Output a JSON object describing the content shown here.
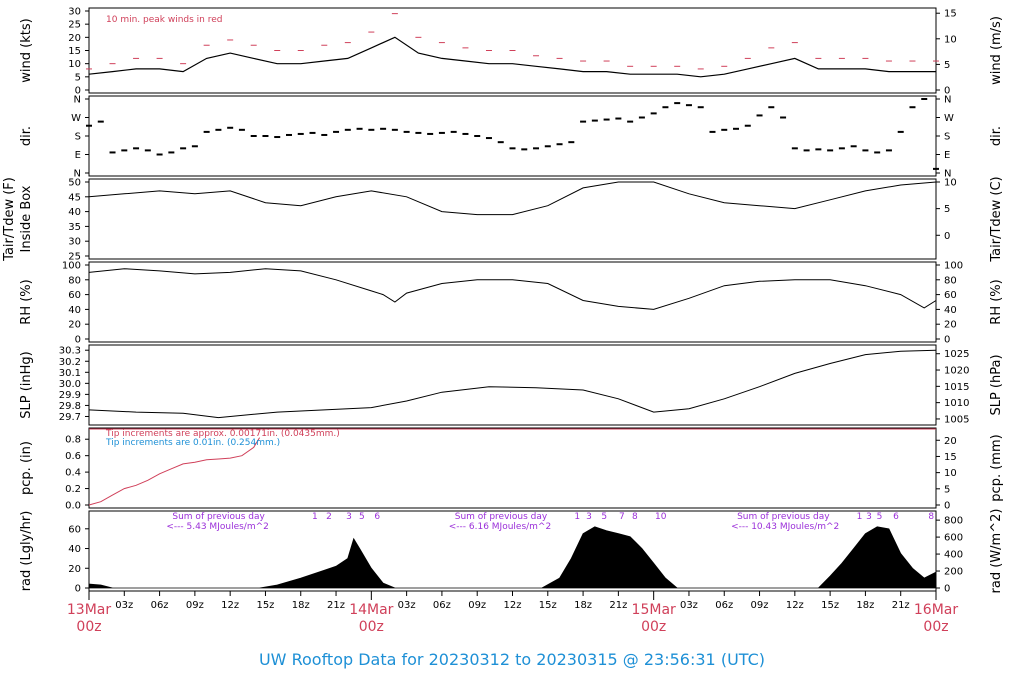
{
  "title": "UW Rooftop Data for 20230312  to  20230315 @ 23:56:31  (UTC)",
  "colors": {
    "peak": "#d0405a",
    "precip_red": "#d0405a",
    "precip_blue": "#1e90d6",
    "purple": "#9b30d9",
    "daylabel": "#d0405a",
    "title": "#1e90d6"
  },
  "x_axis": {
    "day_labels": [
      {
        "hour": 0,
        "top": "13Mar",
        "bottom": "00z"
      },
      {
        "hour": 24,
        "top": "14Mar",
        "bottom": "00z"
      },
      {
        "hour": 48,
        "top": "15Mar",
        "bottom": "00z"
      },
      {
        "hour": 72,
        "top": "16Mar",
        "bottom": "00z"
      }
    ],
    "hour_ticks": [
      {
        "hour": 3,
        "label": "03z"
      },
      {
        "hour": 6,
        "label": "06z"
      },
      {
        "hour": 9,
        "label": "09z"
      },
      {
        "hour": 12,
        "label": "12z"
      },
      {
        "hour": 15,
        "label": "15z"
      },
      {
        "hour": 18,
        "label": "18z"
      },
      {
        "hour": 21,
        "label": "21z"
      },
      {
        "hour": 27,
        "label": "03z"
      },
      {
        "hour": 30,
        "label": "06z"
      },
      {
        "hour": 33,
        "label": "09z"
      },
      {
        "hour": 36,
        "label": "12z"
      },
      {
        "hour": 39,
        "label": "15z"
      },
      {
        "hour": 42,
        "label": "18z"
      },
      {
        "hour": 45,
        "label": "21z"
      },
      {
        "hour": 51,
        "label": "03z"
      },
      {
        "hour": 54,
        "label": "06z"
      },
      {
        "hour": 57,
        "label": "09z"
      },
      {
        "hour": 60,
        "label": "12z"
      },
      {
        "hour": 63,
        "label": "15z"
      },
      {
        "hour": 66,
        "label": "18z"
      },
      {
        "hour": 69,
        "label": "21z"
      }
    ]
  },
  "chart_data": [
    {
      "type": "line",
      "id": "wind",
      "ylabel_left": "wind (kts)",
      "ylabel_right": "wind (m/s)",
      "ylim": [
        0,
        30
      ],
      "left_ticks": [
        0,
        5,
        10,
        15,
        20,
        25,
        30
      ],
      "right_ticks": [
        0,
        5,
        10,
        15
      ],
      "annotation": "10 min. peak winds in red",
      "series": [
        {
          "name": "wind",
          "x": [
            0,
            2,
            4,
            6,
            8,
            10,
            12,
            14,
            16,
            18,
            20,
            22,
            24,
            26,
            28,
            30,
            32,
            34,
            36,
            38,
            40,
            42,
            44,
            46,
            48,
            50,
            52,
            54,
            56,
            58,
            60,
            62,
            64,
            66,
            68,
            70,
            72
          ],
          "y": [
            6,
            7,
            8,
            8,
            7,
            12,
            14,
            12,
            10,
            10,
            11,
            12,
            16,
            20,
            14,
            12,
            11,
            10,
            10,
            9,
            8,
            7,
            7,
            6,
            6,
            6,
            5,
            6,
            8,
            10,
            12,
            8,
            8,
            8,
            7,
            7,
            7
          ]
        },
        {
          "name": "peak",
          "x": [
            0,
            2,
            4,
            6,
            8,
            10,
            12,
            14,
            16,
            18,
            20,
            22,
            24,
            26,
            28,
            30,
            32,
            34,
            36,
            38,
            40,
            42,
            44,
            46,
            48,
            50,
            52,
            54,
            56,
            58,
            60,
            62,
            64,
            66,
            68,
            70,
            72
          ],
          "y": [
            8,
            10,
            12,
            12,
            10,
            17,
            19,
            17,
            15,
            15,
            17,
            18,
            22,
            29,
            20,
            18,
            16,
            15,
            15,
            13,
            12,
            11,
            11,
            9,
            9,
            9,
            8,
            9,
            12,
            16,
            18,
            12,
            12,
            12,
            11,
            11,
            11
          ]
        }
      ]
    },
    {
      "type": "scatter",
      "id": "dir",
      "ylabel_left": "dir.",
      "ylabel_right": "dir.",
      "ylim": [
        0,
        360
      ],
      "left_ticks": [
        "N",
        "E",
        "S",
        "W",
        "N"
      ],
      "right_ticks": [
        "N",
        "E",
        "S",
        "W",
        "N"
      ],
      "series": [
        {
          "name": "direction",
          "x": [
            0,
            1,
            2,
            3,
            4,
            5,
            6,
            7,
            8,
            9,
            10,
            11,
            12,
            13,
            14,
            15,
            16,
            17,
            18,
            19,
            20,
            21,
            22,
            23,
            24,
            25,
            26,
            27,
            28,
            29,
            30,
            31,
            32,
            33,
            34,
            35,
            36,
            37,
            38,
            39,
            40,
            41,
            42,
            43,
            44,
            45,
            46,
            47,
            48,
            49,
            50,
            51,
            52,
            53,
            54,
            55,
            56,
            57,
            58,
            59,
            60,
            61,
            62,
            63,
            64,
            65,
            66,
            67,
            68,
            69,
            70,
            71,
            72
          ],
          "y": [
            230,
            250,
            100,
            110,
            120,
            110,
            90,
            100,
            120,
            130,
            200,
            210,
            220,
            210,
            180,
            180,
            175,
            185,
            190,
            195,
            185,
            200,
            210,
            215,
            210,
            215,
            210,
            200,
            195,
            190,
            195,
            200,
            190,
            180,
            170,
            150,
            120,
            115,
            120,
            130,
            140,
            150,
            250,
            255,
            260,
            265,
            250,
            270,
            290,
            320,
            340,
            330,
            320,
            200,
            210,
            215,
            230,
            280,
            320,
            270,
            120,
            110,
            115,
            110,
            120,
            130,
            110,
            100,
            110,
            200,
            320,
            360,
            20
          ]
        }
      ]
    },
    {
      "type": "line",
      "id": "temp",
      "ylabel_left": "Tair/Tdew (F)",
      "ylabel_left2": "Inside Box",
      "ylabel_right": "Tair/Tdew (C)",
      "ylim": [
        25,
        50
      ],
      "left_ticks": [
        25,
        30,
        35,
        40,
        45,
        50
      ],
      "right_ticks": [
        0,
        5,
        10
      ],
      "series": [
        {
          "name": "Tair",
          "x": [
            0,
            3,
            6,
            9,
            12,
            15,
            18,
            21,
            24,
            27,
            30,
            33,
            36,
            39,
            42,
            45,
            48,
            51,
            54,
            57,
            60,
            63,
            66,
            69,
            72
          ],
          "y": [
            45,
            46,
            47,
            46,
            47,
            43,
            42,
            45,
            47,
            45,
            40,
            39,
            39,
            42,
            48,
            50,
            50,
            46,
            43,
            42,
            41,
            44,
            47,
            49,
            50
          ]
        }
      ]
    },
    {
      "type": "line",
      "id": "rh",
      "ylabel_left": "RH (%)",
      "ylabel_right": "RH (%)",
      "ylim": [
        0,
        100
      ],
      "left_ticks": [
        0,
        20,
        40,
        60,
        80,
        100
      ],
      "right_ticks": [
        0,
        20,
        40,
        60,
        80,
        100
      ],
      "series": [
        {
          "name": "RH",
          "x": [
            0,
            3,
            6,
            9,
            12,
            15,
            18,
            21,
            24,
            25,
            26,
            27,
            30,
            33,
            36,
            39,
            42,
            45,
            48,
            51,
            54,
            57,
            60,
            63,
            66,
            69,
            71,
            72
          ],
          "y": [
            90,
            95,
            92,
            88,
            90,
            95,
            92,
            80,
            65,
            60,
            50,
            62,
            75,
            80,
            80,
            75,
            52,
            44,
            40,
            55,
            72,
            78,
            80,
            80,
            72,
            60,
            42,
            52
          ]
        }
      ]
    },
    {
      "type": "line",
      "id": "slp",
      "ylabel_left": "SLP (inHg)",
      "ylabel_right": "SLP (hPa)",
      "ylim": [
        29.65,
        30.32
      ],
      "left_ticks": [
        29.7,
        29.8,
        29.9,
        30.0,
        30.1,
        30.2,
        30.3
      ],
      "right_ticks": [
        1005,
        1010,
        1015,
        1020,
        1025
      ],
      "series": [
        {
          "name": "SLP",
          "x": [
            0,
            4,
            8,
            11,
            16,
            20,
            24,
            27,
            30,
            34,
            38,
            42,
            45,
            48,
            51,
            54,
            57,
            60,
            63,
            66,
            69,
            72
          ],
          "y": [
            29.76,
            29.74,
            29.73,
            29.69,
            29.74,
            29.76,
            29.78,
            29.84,
            29.92,
            29.97,
            29.96,
            29.94,
            29.86,
            29.74,
            29.77,
            29.86,
            29.97,
            30.09,
            30.18,
            30.26,
            30.29,
            30.3
          ]
        }
      ]
    },
    {
      "type": "line",
      "id": "pcp",
      "ylabel_left": "pcp. (in)",
      "ylabel_right": "pcp. (mm)",
      "ylim": [
        0,
        0.9
      ],
      "left_ticks": [
        0.0,
        0.2,
        0.4,
        0.6,
        0.8
      ],
      "right_ticks": [
        0,
        5,
        10,
        15,
        20
      ],
      "annotation_red": "Tip increments are approx. 0.00171in. (0.0435mm.)",
      "annotation_blue": "Tip increments are 0.01in. (0.254mm.)",
      "series": [
        {
          "name": "precip",
          "x": [
            0,
            1,
            2,
            3,
            4,
            5,
            6,
            7,
            8,
            9,
            10,
            11,
            12,
            13,
            14,
            14.5
          ],
          "y": [
            0,
            0.04,
            0.12,
            0.2,
            0.24,
            0.3,
            0.38,
            0.44,
            0.5,
            0.52,
            0.55,
            0.56,
            0.57,
            0.6,
            0.7,
            0.82
          ]
        }
      ]
    },
    {
      "type": "area",
      "id": "rad",
      "ylabel_left": "rad (Lgly/hr)",
      "ylabel_right": "rad (W/m^2)",
      "ylim": [
        0,
        75
      ],
      "left_ticks": [
        0,
        20,
        40,
        60
      ],
      "right_ticks": [
        0,
        200,
        400,
        600,
        800
      ],
      "day_sums": [
        {
          "hour": 11,
          "line1": "Sum of previous day",
          "line2": "<--- 5.43 MJoules/m^2"
        },
        {
          "hour": 35,
          "line1": "Sum of previous day",
          "line2": "<--- 6.16 MJoules/m^2"
        },
        {
          "hour": 59,
          "line1": "Sum of previous day",
          "line2": "<--- 10.43 MJoules/m^2"
        }
      ],
      "hour_marks": [
        {
          "hour": 19.2,
          "label": "1"
        },
        {
          "hour": 20.4,
          "label": "2"
        },
        {
          "hour": 22.1,
          "label": "3"
        },
        {
          "hour": 23.2,
          "label": "5"
        },
        {
          "hour": 24.5,
          "label": "6"
        },
        {
          "hour": 41.5,
          "label": "1"
        },
        {
          "hour": 42.5,
          "label": "3"
        },
        {
          "hour": 43.8,
          "label": "5"
        },
        {
          "hour": 45.3,
          "label": "7"
        },
        {
          "hour": 46.4,
          "label": "8"
        },
        {
          "hour": 48.6,
          "label": "10"
        },
        {
          "hour": 65.5,
          "label": "1"
        },
        {
          "hour": 66.3,
          "label": "3"
        },
        {
          "hour": 67.2,
          "label": "5"
        },
        {
          "hour": 68.6,
          "label": "6"
        },
        {
          "hour": 71.6,
          "label": "8"
        }
      ],
      "series": [
        {
          "name": "radiation",
          "x": [
            0,
            1,
            2,
            14.5,
            16,
            18,
            20,
            21,
            22,
            22.5,
            23,
            24,
            25,
            26,
            38.5,
            40,
            41,
            42,
            43,
            44,
            45,
            46,
            47,
            48,
            49,
            50,
            62,
            63,
            64,
            65,
            66,
            67,
            68,
            69,
            70,
            71,
            72
          ],
          "y": [
            4,
            3,
            0,
            0,
            3,
            10,
            18,
            22,
            30,
            50,
            40,
            20,
            5,
            0,
            0,
            10,
            30,
            55,
            62,
            58,
            55,
            52,
            40,
            25,
            10,
            0,
            0,
            12,
            25,
            40,
            55,
            62,
            60,
            35,
            20,
            10,
            16
          ]
        }
      ]
    }
  ]
}
